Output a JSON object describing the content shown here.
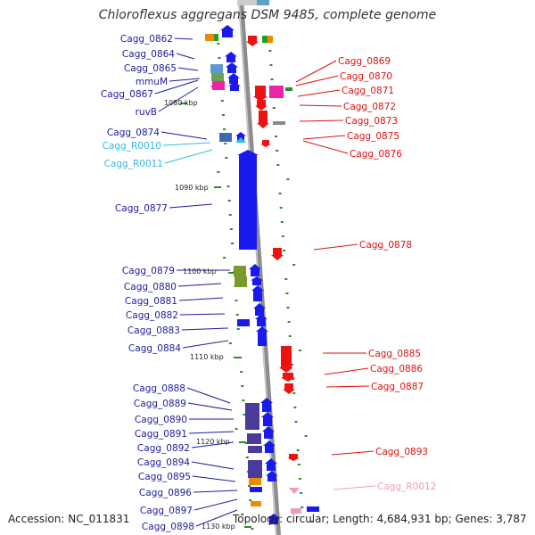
{
  "title": "Chloroflexus aggregans DSM 9485, complete genome",
  "footer": {
    "accession": "Accession: NC_011831",
    "summary": "Topology: circular; Length: 4,684,931 bp; Genes: 3,787"
  },
  "colors": {
    "backbone": "#8c8c8c",
    "left_strand_gene": "#1a1aee",
    "left_strand_label": "#1c1c9e",
    "right_strand_gene": "#ee1111",
    "right_strand_label": "#dd1111",
    "trna_left_label": "#33bbe0",
    "trna_right_label": "#f09ac0",
    "tick": "#2e8b2e"
  },
  "scale_labels": [
    "1080 kbp",
    "1090 kbp",
    "1100 kbp",
    "1110 kbp",
    "1120 kbp",
    "1130 kbp"
  ],
  "left_labels": [
    "Cagg_0862",
    "Cagg_0864",
    "Cagg_0865",
    "mmuM",
    "Cagg_0867",
    "ruvB",
    "Cagg_0874",
    "Cagg_R0010",
    "Cagg_R0011",
    "Cagg_0877",
    "Cagg_0879",
    "Cagg_0880",
    "Cagg_0881",
    "Cagg_0882",
    "Cagg_0883",
    "Cagg_0884",
    "Cagg_0888",
    "Cagg_0889",
    "Cagg_0890",
    "Cagg_0891",
    "Cagg_0892",
    "Cagg_0894",
    "Cagg_0895",
    "Cagg_0896",
    "Cagg_0897",
    "Cagg_0898"
  ],
  "right_labels": [
    "Cagg_0869",
    "Cagg_0870",
    "Cagg_0871",
    "Cagg_0872",
    "Cagg_0873",
    "Cagg_0875",
    "Cagg_0876",
    "Cagg_0878",
    "Cagg_0885",
    "Cagg_0886",
    "Cagg_0887",
    "Cagg_0893",
    "Cagg_R0012"
  ]
}
